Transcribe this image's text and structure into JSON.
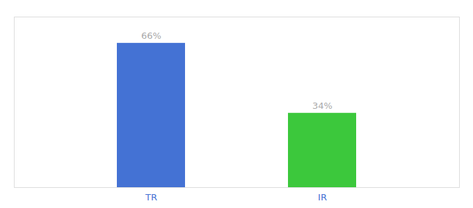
{
  "chart_data": {
    "type": "bar",
    "categories": [
      "TR",
      "IR"
    ],
    "values": [
      66,
      34
    ],
    "value_labels": [
      "66%",
      "34%"
    ],
    "data_labels": true,
    "colors": [
      "#4472D4",
      "#3CC83C"
    ],
    "ylim": [
      0,
      78
    ],
    "tick_labels": "x"
  }
}
